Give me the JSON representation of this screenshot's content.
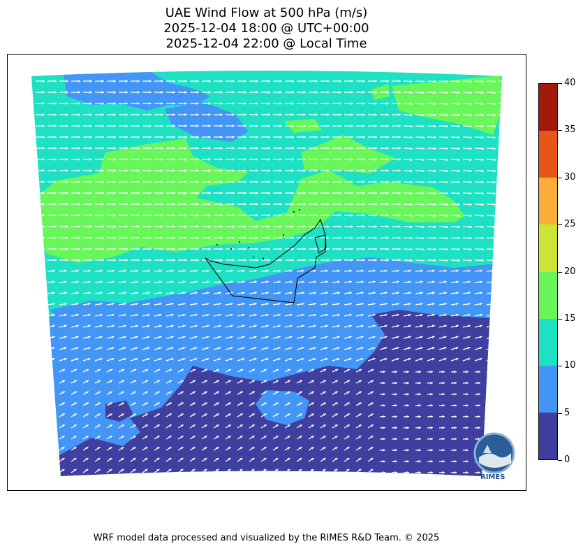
{
  "title": {
    "line1": "UAE Wind Flow at 500 hPa (m/s)",
    "line2": "2025-12-04 18:00 @ UTC+00:00",
    "line3": "2025-12-04 22:00 @ Local Time"
  },
  "colorbar": {
    "ticks": [
      "0",
      "5",
      "10",
      "15",
      "20",
      "25",
      "30",
      "35",
      "40"
    ],
    "colors": [
      "#3f3f9f",
      "#4396f5",
      "#1ee0c3",
      "#68f65a",
      "#cae535",
      "#fbad39",
      "#e85518",
      "#a3180b"
    ]
  },
  "logo": {
    "text": "RIMES"
  },
  "credit": "WRF model data processed and visualized by the RIMES R&D Team. © 2025"
}
